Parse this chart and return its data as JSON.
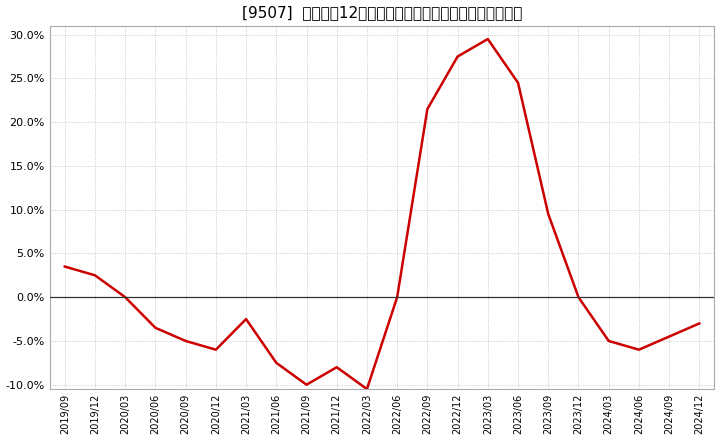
{
  "title": "[9507]  売上高の12か月移動合計の対前年同期増減率の推移",
  "line_color": "#cc0000",
  "bg_color": "#ffffff",
  "plot_bg_color": "#ffffff",
  "grid_color": "#bbbbbb",
  "zero_line_color": "#333333",
  "dates": [
    "2019-09",
    "2019-12",
    "2020-03",
    "2020-06",
    "2020-09",
    "2020-12",
    "2021-03",
    "2021-06",
    "2021-09",
    "2021-12",
    "2022-03",
    "2022-06",
    "2022-09",
    "2022-12",
    "2023-03",
    "2023-06",
    "2023-09",
    "2023-12",
    "2024-03",
    "2024-06",
    "2024-09",
    "2024-12"
  ],
  "values": [
    3.5,
    2.5,
    0.0,
    -3.5,
    -5.0,
    -6.0,
    -2.5,
    -7.5,
    -10.0,
    -8.0,
    -10.5,
    0.0,
    21.5,
    27.5,
    29.5,
    24.5,
    9.5,
    0.0,
    -5.0,
    -6.0,
    -4.5,
    -3.0
  ],
  "ylim": [
    -10.5,
    31.0
  ],
  "yticks": [
    -10.0,
    -5.0,
    0.0,
    5.0,
    10.0,
    15.0,
    20.0,
    25.0,
    30.0
  ],
  "xtick_labels": [
    "2019/09",
    "2019/12",
    "2020/03",
    "2020/06",
    "2020/09",
    "2020/12",
    "2021/03",
    "2021/06",
    "2021/09",
    "2021/12",
    "2022/03",
    "2022/06",
    "2022/09",
    "2022/12",
    "2023/03",
    "2023/06",
    "2023/09",
    "2023/12",
    "2024/03",
    "2024/06",
    "2024/09",
    "2024/12"
  ],
  "title_fontsize": 11,
  "tick_fontsize": 8,
  "line_width": 1.8
}
